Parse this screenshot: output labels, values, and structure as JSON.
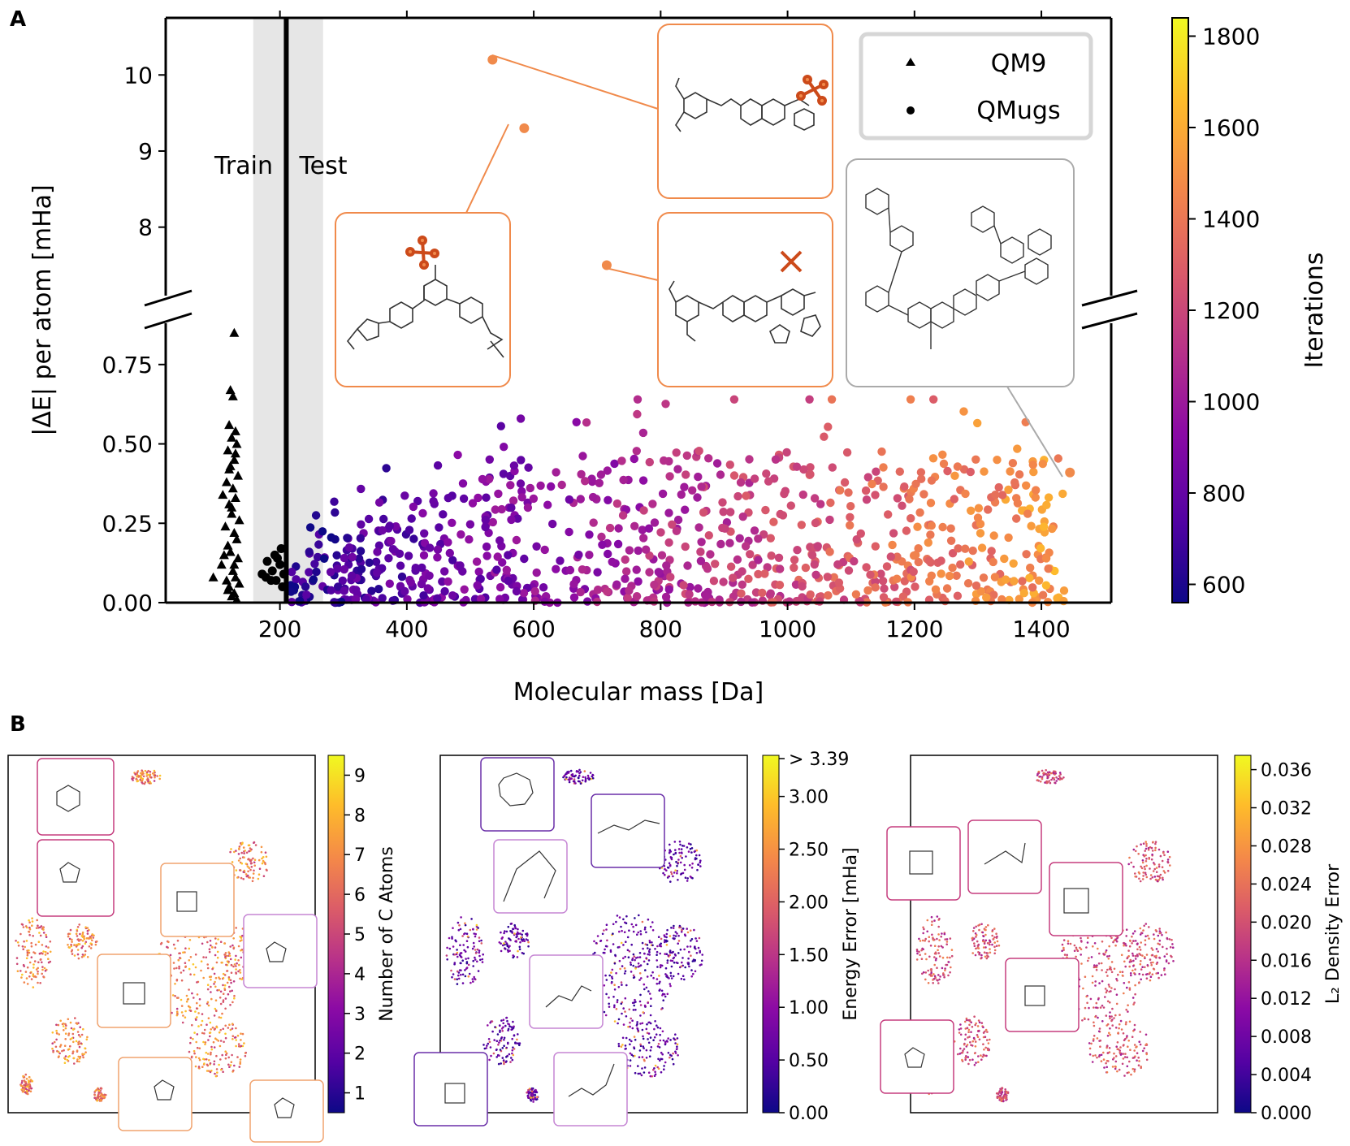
{
  "chart_data": [
    {
      "panel": "A",
      "type": "scatter",
      "xlabel": "Molecular mass [Da]",
      "ylabel": "|ΔE| per atom [mHa]",
      "xticks": [
        "200",
        "400",
        "600",
        "800",
        "1000",
        "1200",
        "1400"
      ],
      "xtick_values": [
        200,
        400,
        600,
        800,
        1000,
        1200,
        1400
      ],
      "yticks_lower": [
        "0.00",
        "0.25",
        "0.50",
        "0.75"
      ],
      "ytick_lower_values": [
        0,
        0.25,
        0.5,
        0.75
      ],
      "yticks_upper": [
        "8",
        "9",
        "10"
      ],
      "ytick_upper_values": [
        8,
        9,
        10
      ],
      "xlim": [
        20,
        1510
      ],
      "ylim_lower": [
        0,
        0.88
      ],
      "ylim_upper": [
        7.1,
        10.75
      ],
      "legend": {
        "placement": "top-right",
        "entries": [
          "QM9",
          "QMugs"
        ]
      },
      "region_labels": {
        "train": "Train",
        "test": "Test"
      },
      "train_test_boundary": 210,
      "shaded_band": [
        158,
        268
      ],
      "colorbar": {
        "label": "Iterations",
        "ticks": [
          "600",
          "800",
          "1000",
          "1200",
          "1400",
          "1600",
          "1800"
        ],
        "tick_values": [
          600,
          800,
          1000,
          1200,
          1400,
          1600,
          1800
        ],
        "range": [
          560,
          1840
        ]
      },
      "series": [
        {
          "name": "QM9",
          "marker": "triangle",
          "points": [
            [
              128,
              0.85
            ],
            [
              122,
              0.67
            ],
            [
              126,
              0.65
            ],
            [
              120,
              0.56
            ],
            [
              130,
              0.54
            ],
            [
              124,
              0.52
            ],
            [
              132,
              0.5
            ],
            [
              118,
              0.48
            ],
            [
              128,
              0.45
            ],
            [
              122,
              0.43
            ],
            [
              134,
              0.4
            ],
            [
              116,
              0.38
            ],
            [
              126,
              0.36
            ],
            [
              130,
              0.33
            ],
            [
              120,
              0.31
            ],
            [
              110,
              0.34
            ],
            [
              124,
              0.28
            ],
            [
              136,
              0.26
            ],
            [
              114,
              0.24
            ],
            [
              128,
              0.22
            ],
            [
              132,
              0.2
            ],
            [
              118,
              0.18
            ],
            [
              122,
              0.16
            ],
            [
              134,
              0.14
            ],
            [
              108,
              0.12
            ],
            [
              126,
              0.1
            ],
            [
              130,
              0.08
            ],
            [
              116,
              0.07
            ],
            [
              95,
              0.08
            ],
            [
              120,
              0.05
            ],
            [
              128,
              0.03
            ],
            [
              124,
              0.02
            ],
            [
              132,
              0.01
            ],
            [
              118,
              0.04
            ],
            [
              136,
              0.06
            ],
            [
              112,
              0.15
            ],
            [
              128,
              0.12
            ],
            [
              124,
              0.3
            ],
            [
              120,
              0.42
            ],
            [
              130,
              0.47
            ]
          ]
        },
        {
          "name": "QMugs",
          "marker": "circle",
          "points": [
            [
              172,
              0.09
            ],
            [
              180,
              0.13
            ],
            [
              188,
              0.1
            ],
            [
              196,
              0.14
            ],
            [
              202,
              0.17
            ],
            [
              186,
              0.07
            ],
            [
              194,
              0.07
            ],
            [
              204,
              0.05
            ],
            [
              200,
              0.12
            ],
            [
              178,
              0.08
            ],
            [
              206,
              0.09
            ],
            [
              192,
              0.15
            ]
          ]
        }
      ],
      "highlight_points": [
        {
          "x": 535,
          "y": 10.2,
          "region": "upper"
        },
        {
          "x": 585,
          "y": 9.3,
          "region": "upper"
        },
        {
          "x": 715,
          "y": 7.5,
          "region": "upper"
        },
        {
          "x": 1445,
          "y": 0.41,
          "region": "lower"
        }
      ],
      "test_cloud": {
        "count": 900,
        "x_range": [
          215,
          1440
        ],
        "y_range": [
          0,
          0.64
        ],
        "colored_by": "Iterations"
      }
    },
    {
      "panel": "B",
      "type": "scatter",
      "subplots": [
        {
          "colorbar_label": "Number of C Atoms",
          "colorbar_ticks": [
            "1",
            "2",
            "3",
            "4",
            "5",
            "6",
            "7",
            "8",
            "9"
          ],
          "colorbar_style": "discrete"
        },
        {
          "colorbar_label": "Energy Error [mHa]",
          "colorbar_ticks": [
            "0.00",
            "0.50",
            "1.00",
            "1.50",
            "2.00",
            "2.50",
            "3.00",
            "> 3.39"
          ],
          "colorbar_style": "continuous"
        },
        {
          "colorbar_label": "L₂ Density Error",
          "colorbar_ticks": [
            "0.000",
            "0.004",
            "0.008",
            "0.012",
            "0.016",
            "0.020",
            "0.024",
            "0.028",
            "0.032",
            "0.036"
          ],
          "colorbar_style": "continuous"
        }
      ]
    }
  ],
  "panel_labels": {
    "a": "A",
    "b": "B"
  },
  "colors": {
    "accent_orange": "#f08a4b",
    "gray_box": "#aaaaaa",
    "band": "#e6e6e6"
  }
}
